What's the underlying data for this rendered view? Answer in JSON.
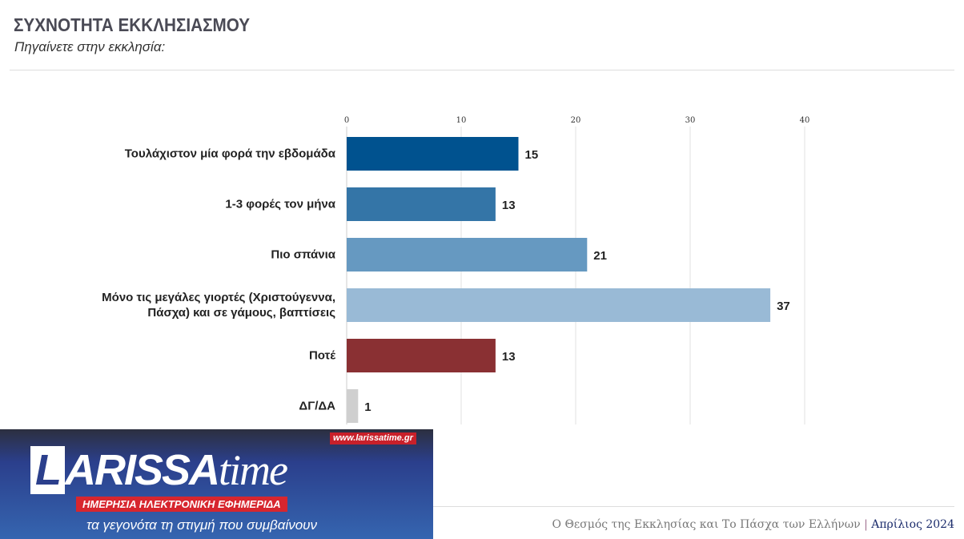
{
  "chart_data": {
    "type": "bar",
    "orientation": "horizontal",
    "title": "ΣΥΧΝΟΤΗΤΑ ΕΚΚΛΗΣΙΑΣΜΟΥ",
    "subtitle": "Πηγαίνετε στην εκκλησία:",
    "categories": [
      "Τουλάχιστον μία φορά την εβδομάδα",
      "1-3 φορές τον μήνα",
      "Πιο σπάνια",
      "Μόνο τις μεγάλες γιορτές (Χριστούγεννα, Πάσχα) και σε γάμους, βαπτίσεις",
      "Ποτέ",
      "ΔΓ/ΔΑ"
    ],
    "values": [
      15,
      13,
      21,
      37,
      13,
      1
    ],
    "colors": [
      "#00528f",
      "#3475a7",
      "#6699c1",
      "#99bad6",
      "#8a3033",
      "#cfcfcf"
    ],
    "xlim": [
      0,
      40
    ],
    "ticks": [
      0,
      10,
      20,
      30,
      40
    ],
    "grid": true
  },
  "footer": {
    "source": "Ο Θεσμός της Εκκλησίας και Το Πάσχα των Ελλήνων",
    "separator": "|",
    "date": "Απρίλιος 2024"
  },
  "logo": {
    "name": "LARISSAtime",
    "url": "www.larissatime.gr",
    "tagline": "ΗΜΕΡΗΣΙΑ ΗΛΕΚΤΡΟΝΙΚΗ ΕΦΗΜΕΡΙΔΑ",
    "slogan": "τα γεγονότα τη στιγμή που συμβαίνουν"
  }
}
